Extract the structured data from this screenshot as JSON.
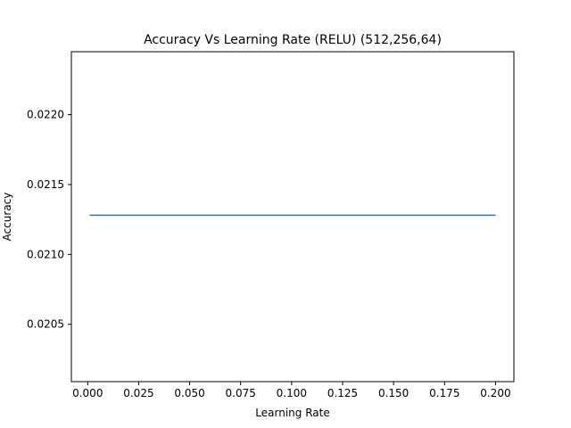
{
  "chart_data": {
    "type": "line",
    "title": "Accuracy Vs Learning Rate (RELU) (512,256,64)",
    "xlabel": "Learning Rate",
    "ylabel": "Accuracy",
    "xlim": [
      -0.008,
      0.209
    ],
    "ylim": [
      0.02009,
      0.02245
    ],
    "xticks": [
      0.0,
      0.025,
      0.05,
      0.075,
      0.1,
      0.125,
      0.15,
      0.175,
      0.2
    ],
    "xtick_labels": [
      "0.000",
      "0.025",
      "0.050",
      "0.075",
      "0.100",
      "0.125",
      "0.150",
      "0.175",
      "0.200"
    ],
    "yticks": [
      0.0205,
      0.021,
      0.0215,
      0.022
    ],
    "ytick_labels": [
      "0.0205",
      "0.0210",
      "0.0215",
      "0.0220"
    ],
    "grid": false,
    "series": [
      {
        "color": "#1f77b4",
        "x": [
          0.001,
          0.2
        ],
        "y": [
          0.02128,
          0.02128
        ]
      }
    ]
  }
}
